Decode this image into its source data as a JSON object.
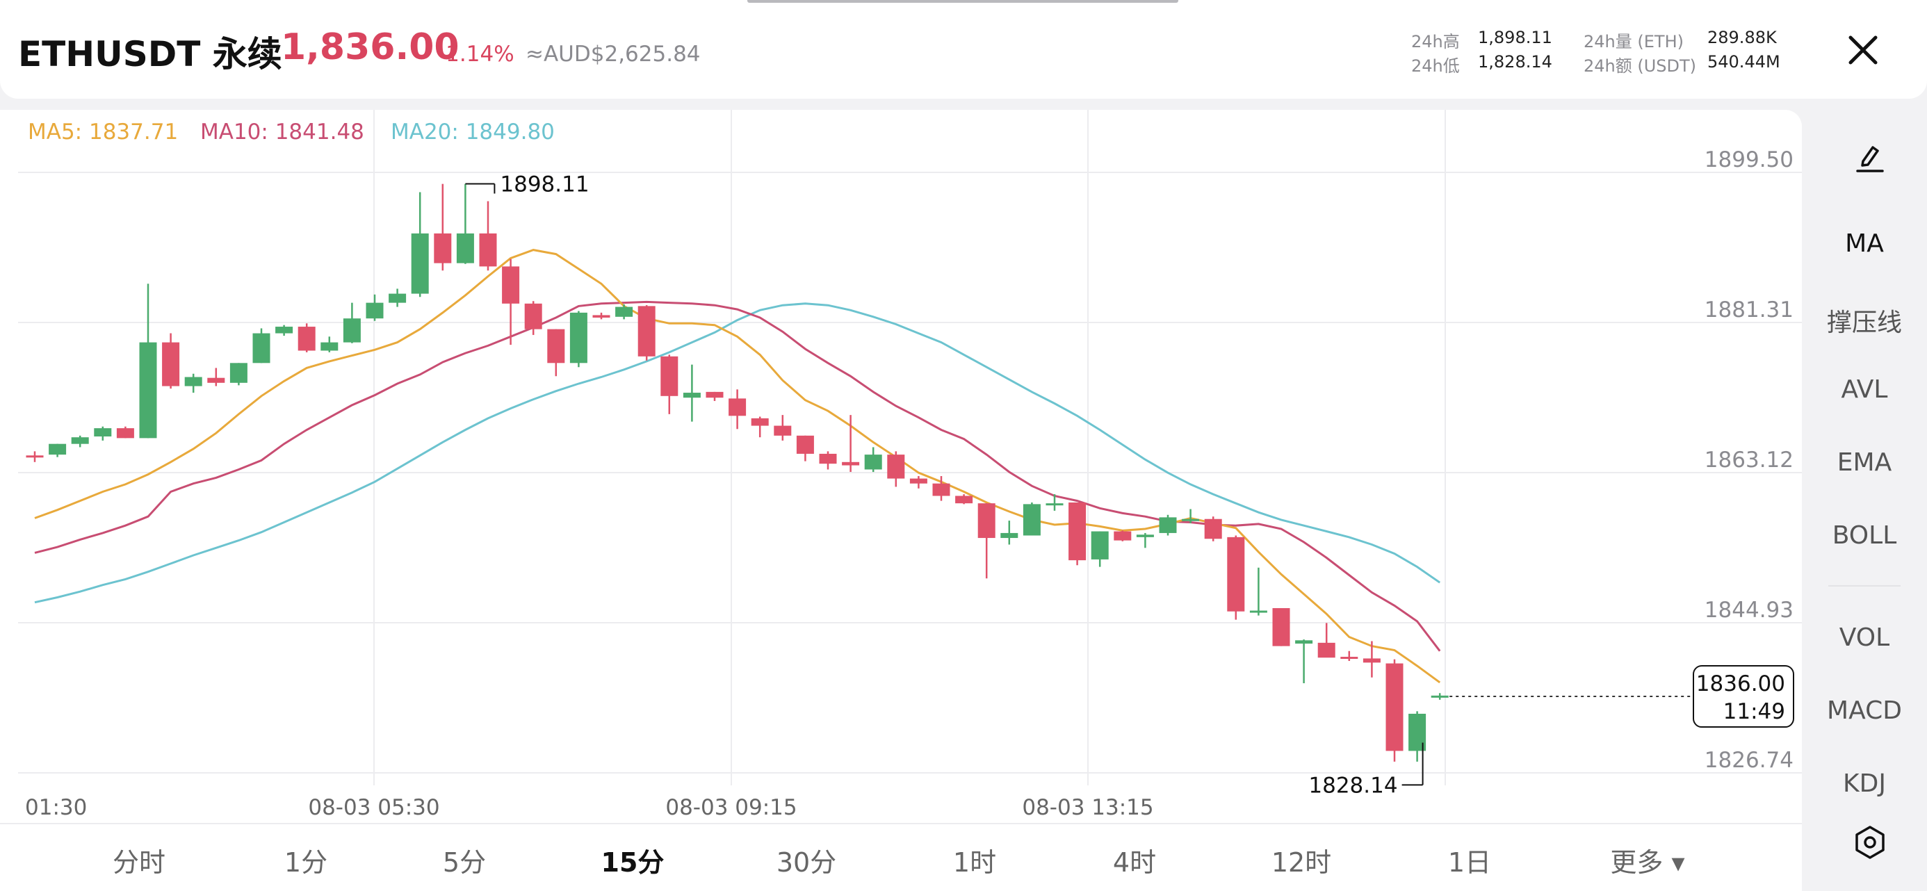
{
  "header": {
    "symbol": "ETHUSDT 永续",
    "price": "1,836.00",
    "change": "-1.14%",
    "fiat": "≈AUD$2,625.84",
    "stats": [
      {
        "label": "24h高",
        "value": "1,898.11"
      },
      {
        "label": "24h低",
        "value": "1,828.14"
      },
      {
        "label": "24h量 (ETH)",
        "value": "289.88K"
      },
      {
        "label": "24h额 (USDT)",
        "value": "540.44M"
      }
    ]
  },
  "icons": {
    "close": "close-icon",
    "edit": "pen-icon",
    "settings": "settings-hexagon-icon"
  },
  "ma_legend": {
    "ma5": "MA5: 1837.71",
    "ma10": "MA10: 1841.48",
    "ma20": "MA20: 1849.80"
  },
  "side_tools": [
    "MA",
    "撑压线",
    "AVL",
    "EMA",
    "BOLL",
    "VOL",
    "MACD",
    "KDJ"
  ],
  "timeframes": [
    "分时",
    "1分",
    "5分",
    "15分",
    "30分",
    "1时",
    "4时",
    "12时",
    "1日",
    "更多 ▾"
  ],
  "active_timeframe": "15分",
  "colors": {
    "up": "#4aab6d",
    "down": "#e0526a",
    "ma5": "#e8a93b",
    "ma10": "#c84d72",
    "ma20": "#6cc3cf",
    "price_red": "#d9445e"
  },
  "chart_data": {
    "type": "candlestick",
    "y_ticks": [
      1899.5,
      1881.31,
      1863.12,
      1844.93,
      1826.74
    ],
    "ylim": [
      1826.74,
      1899.5
    ],
    "x_tick_labels": [
      "01:30",
      "08-03 05:30",
      "08-03 09:15",
      "08-03 13:15"
    ],
    "x_tick_indices": [
      0,
      16,
      31,
      47
    ],
    "grid": true,
    "annotations": {
      "high_label": "1898.11",
      "low_label": "1828.14",
      "last_price": "1836.00",
      "countdown": "11:49"
    },
    "candles": [
      {
        "o": 1865.2,
        "h": 1865.7,
        "l": 1864.4,
        "c": 1865.1
      },
      {
        "o": 1865.3,
        "h": 1866.6,
        "l": 1865.0,
        "c": 1866.6
      },
      {
        "o": 1866.6,
        "h": 1867.6,
        "l": 1866.2,
        "c": 1867.4
      },
      {
        "o": 1867.5,
        "h": 1868.7,
        "l": 1867.0,
        "c": 1868.5
      },
      {
        "o": 1868.5,
        "h": 1868.7,
        "l": 1867.3,
        "c": 1867.3
      },
      {
        "o": 1867.3,
        "h": 1886.0,
        "l": 1867.3,
        "c": 1878.9
      },
      {
        "o": 1878.9,
        "h": 1880.0,
        "l": 1873.3,
        "c": 1873.6
      },
      {
        "o": 1873.6,
        "h": 1875.1,
        "l": 1872.8,
        "c": 1874.7
      },
      {
        "o": 1874.6,
        "h": 1875.8,
        "l": 1873.6,
        "c": 1874.0
      },
      {
        "o": 1874.0,
        "h": 1876.4,
        "l": 1873.7,
        "c": 1876.4
      },
      {
        "o": 1876.4,
        "h": 1880.6,
        "l": 1876.4,
        "c": 1880.0
      },
      {
        "o": 1880.0,
        "h": 1881.0,
        "l": 1879.7,
        "c": 1880.8
      },
      {
        "o": 1880.8,
        "h": 1881.2,
        "l": 1877.7,
        "c": 1877.9
      },
      {
        "o": 1877.9,
        "h": 1879.6,
        "l": 1877.7,
        "c": 1878.9
      },
      {
        "o": 1878.9,
        "h": 1883.7,
        "l": 1878.8,
        "c": 1881.8
      },
      {
        "o": 1881.8,
        "h": 1884.7,
        "l": 1881.5,
        "c": 1883.7
      },
      {
        "o": 1883.7,
        "h": 1885.4,
        "l": 1883.2,
        "c": 1884.8
      },
      {
        "o": 1884.8,
        "h": 1897.1,
        "l": 1884.4,
        "c": 1892.1
      },
      {
        "o": 1892.1,
        "h": 1898.1,
        "l": 1887.6,
        "c": 1888.5
      },
      {
        "o": 1888.5,
        "h": 1898.1,
        "l": 1888.4,
        "c": 1892.1
      },
      {
        "o": 1892.1,
        "h": 1896.0,
        "l": 1887.6,
        "c": 1888.1
      },
      {
        "o": 1888.1,
        "h": 1889.0,
        "l": 1878.6,
        "c": 1883.6
      },
      {
        "o": 1883.6,
        "h": 1883.9,
        "l": 1879.8,
        "c": 1880.5
      },
      {
        "o": 1880.5,
        "h": 1880.5,
        "l": 1874.8,
        "c": 1876.4
      },
      {
        "o": 1876.4,
        "h": 1882.7,
        "l": 1875.9,
        "c": 1882.5
      },
      {
        "o": 1882.2,
        "h": 1882.5,
        "l": 1881.7,
        "c": 1881.9
      },
      {
        "o": 1882.0,
        "h": 1883.5,
        "l": 1881.7,
        "c": 1883.2
      },
      {
        "o": 1883.3,
        "h": 1883.4,
        "l": 1876.7,
        "c": 1877.2
      },
      {
        "o": 1877.2,
        "h": 1877.4,
        "l": 1870.2,
        "c": 1872.4
      },
      {
        "o": 1872.2,
        "h": 1876.2,
        "l": 1869.3,
        "c": 1872.8
      },
      {
        "o": 1872.9,
        "h": 1872.9,
        "l": 1871.8,
        "c": 1872.2
      },
      {
        "o": 1872.1,
        "h": 1873.2,
        "l": 1868.4,
        "c": 1870.0
      },
      {
        "o": 1869.7,
        "h": 1869.9,
        "l": 1867.4,
        "c": 1868.8
      },
      {
        "o": 1868.8,
        "h": 1870.1,
        "l": 1867.0,
        "c": 1867.6
      },
      {
        "o": 1867.6,
        "h": 1867.6,
        "l": 1864.5,
        "c": 1865.4
      },
      {
        "o": 1865.4,
        "h": 1865.7,
        "l": 1863.5,
        "c": 1864.2
      },
      {
        "o": 1864.4,
        "h": 1870.1,
        "l": 1863.2,
        "c": 1864.0
      },
      {
        "o": 1863.5,
        "h": 1866.2,
        "l": 1863.2,
        "c": 1865.3
      },
      {
        "o": 1865.3,
        "h": 1865.7,
        "l": 1861.4,
        "c": 1862.4
      },
      {
        "o": 1862.4,
        "h": 1862.7,
        "l": 1861.2,
        "c": 1861.8
      },
      {
        "o": 1861.8,
        "h": 1862.7,
        "l": 1859.7,
        "c": 1860.3
      },
      {
        "o": 1860.3,
        "h": 1860.5,
        "l": 1859.3,
        "c": 1859.4
      },
      {
        "o": 1859.4,
        "h": 1859.4,
        "l": 1850.3,
        "c": 1855.2
      },
      {
        "o": 1855.2,
        "h": 1857.3,
        "l": 1854.4,
        "c": 1855.8
      },
      {
        "o": 1855.5,
        "h": 1859.5,
        "l": 1855.5,
        "c": 1859.3
      },
      {
        "o": 1859.4,
        "h": 1860.5,
        "l": 1858.5,
        "c": 1859.4
      },
      {
        "o": 1859.5,
        "h": 1859.5,
        "l": 1851.9,
        "c": 1852.5
      },
      {
        "o": 1852.6,
        "h": 1856.0,
        "l": 1851.7,
        "c": 1856.0
      },
      {
        "o": 1856.0,
        "h": 1856.1,
        "l": 1854.8,
        "c": 1854.9
      },
      {
        "o": 1855.3,
        "h": 1855.8,
        "l": 1854.0,
        "c": 1855.6
      },
      {
        "o": 1855.8,
        "h": 1858.0,
        "l": 1855.5,
        "c": 1857.7
      },
      {
        "o": 1857.5,
        "h": 1858.7,
        "l": 1857.0,
        "c": 1857.5
      },
      {
        "o": 1857.5,
        "h": 1857.8,
        "l": 1854.8,
        "c": 1855.1
      },
      {
        "o": 1855.3,
        "h": 1855.5,
        "l": 1845.3,
        "c": 1846.3
      },
      {
        "o": 1846.2,
        "h": 1851.6,
        "l": 1845.8,
        "c": 1846.4
      },
      {
        "o": 1846.7,
        "h": 1846.7,
        "l": 1842.1,
        "c": 1842.1
      },
      {
        "o": 1842.4,
        "h": 1842.9,
        "l": 1837.6,
        "c": 1842.8
      },
      {
        "o": 1842.5,
        "h": 1844.9,
        "l": 1841.4,
        "c": 1840.7
      },
      {
        "o": 1840.8,
        "h": 1841.5,
        "l": 1840.3,
        "c": 1840.6
      },
      {
        "o": 1840.6,
        "h": 1842.7,
        "l": 1838.3,
        "c": 1840.1
      },
      {
        "o": 1840.0,
        "h": 1840.5,
        "l": 1828.1,
        "c": 1829.4
      },
      {
        "o": 1829.4,
        "h": 1834.2,
        "l": 1828.1,
        "c": 1833.9
      },
      {
        "o": 1836.0,
        "h": 1836.4,
        "l": 1835.6,
        "c": 1836.1
      }
    ],
    "ma5": [
      1857.6,
      1858.6,
      1859.7,
      1860.8,
      1861.7,
      1862.9,
      1864.4,
      1866.0,
      1867.9,
      1870.2,
      1872.4,
      1874.2,
      1875.8,
      1876.6,
      1877.3,
      1878.0,
      1878.9,
      1880.5,
      1882.5,
      1884.6,
      1886.9,
      1889.1,
      1890.1,
      1889.6,
      1887.8,
      1886.0,
      1883.3,
      1881.8,
      1881.2,
      1881.2,
      1881.0,
      1879.6,
      1877.4,
      1874.3,
      1871.9,
      1870.6,
      1868.8,
      1866.8,
      1865.0,
      1863.1,
      1862.0,
      1860.8,
      1859.5,
      1858.4,
      1857.4,
      1856.8,
      1857.0,
      1856.6,
      1856.1,
      1856.3,
      1856.9,
      1857.6,
      1857.0,
      1856.4,
      1853.5,
      1850.8,
      1848.4,
      1846.0,
      1843.2,
      1842.1,
      1841.6,
      1839.7,
      1837.7
    ],
    "ma10": [
      1853.4,
      1854.1,
      1855.0,
      1855.8,
      1856.7,
      1857.8,
      1860.8,
      1861.8,
      1862.5,
      1863.5,
      1864.6,
      1866.6,
      1868.3,
      1869.8,
      1871.3,
      1872.5,
      1873.9,
      1875.0,
      1876.5,
      1877.6,
      1878.5,
      1879.6,
      1880.7,
      1881.9,
      1883.3,
      1883.6,
      1883.7,
      1883.8,
      1883.7,
      1883.6,
      1883.4,
      1882.9,
      1881.9,
      1880.2,
      1878.1,
      1876.4,
      1874.8,
      1872.9,
      1871.2,
      1869.8,
      1868.3,
      1867.2,
      1865.3,
      1863.2,
      1861.5,
      1860.3,
      1859.7,
      1858.8,
      1858.2,
      1857.8,
      1857.2,
      1857.1,
      1856.8,
      1856.7,
      1856.9,
      1856.3,
      1854.7,
      1852.8,
      1850.7,
      1848.6,
      1847.0,
      1845.1,
      1841.5
    ],
    "ma20": [
      1847.4,
      1848.0,
      1848.7,
      1849.5,
      1850.2,
      1851.1,
      1852.1,
      1853.1,
      1854.0,
      1854.9,
      1855.9,
      1857.1,
      1858.3,
      1859.5,
      1860.7,
      1862.0,
      1863.6,
      1865.2,
      1866.8,
      1868.3,
      1869.7,
      1870.9,
      1872.0,
      1873.0,
      1873.9,
      1874.7,
      1875.6,
      1876.6,
      1877.7,
      1878.9,
      1880.1,
      1881.6,
      1882.8,
      1883.4,
      1883.6,
      1883.4,
      1882.8,
      1882.0,
      1881.1,
      1880.0,
      1878.9,
      1877.4,
      1875.9,
      1874.4,
      1872.9,
      1871.5,
      1870.0,
      1868.3,
      1866.5,
      1864.7,
      1863.1,
      1861.7,
      1860.5,
      1859.4,
      1858.3,
      1857.4,
      1856.7,
      1856.0,
      1855.3,
      1854.4,
      1853.3,
      1851.7,
      1849.8
    ]
  }
}
